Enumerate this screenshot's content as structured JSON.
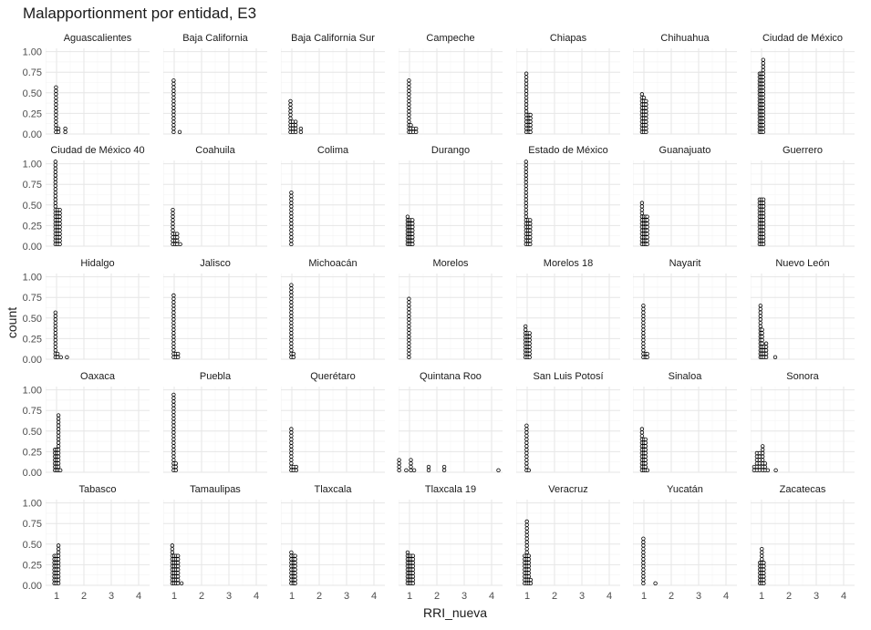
{
  "chart_data": {
    "type": "dotplot",
    "title": "Malapportionment por entidad, E3",
    "xlabel": "RRI_nueva",
    "ylabel": "count",
    "xlim": [
      0.6,
      4.4
    ],
    "ylim": [
      0,
      1.04
    ],
    "x_ticks": [
      1,
      2,
      3,
      4
    ],
    "y_ticks": [
      0,
      0.25,
      0.5,
      0.75,
      1.0
    ],
    "y_tick_labels": [
      "0.00",
      "0.25",
      "0.50",
      "0.75",
      "1.00"
    ],
    "grid": true,
    "dot_step": 0.0417,
    "panels": [
      {
        "name": "Aguascalientes",
        "stacks": [
          [
            0.98,
            14
          ],
          [
            1.07,
            2
          ],
          [
            1.32,
            2
          ]
        ]
      },
      {
        "name": "Baja California",
        "stacks": [
          [
            0.98,
            16
          ],
          [
            1.2,
            1
          ]
        ]
      },
      {
        "name": "Baja California Sur",
        "stacks": [
          [
            0.95,
            10
          ],
          [
            1.04,
            4
          ],
          [
            1.14,
            4
          ],
          [
            1.33,
            2
          ]
        ]
      },
      {
        "name": "Campeche",
        "stacks": [
          [
            0.98,
            16
          ],
          [
            1.05,
            3
          ],
          [
            1.14,
            2
          ],
          [
            1.24,
            2
          ]
        ]
      },
      {
        "name": "Chiapas",
        "stacks": [
          [
            0.97,
            18
          ],
          [
            1.06,
            6
          ],
          [
            1.12,
            6
          ]
        ]
      },
      {
        "name": "Chihuahua",
        "stacks": [
          [
            0.93,
            12
          ],
          [
            1.0,
            11
          ],
          [
            1.08,
            10
          ]
        ]
      },
      {
        "name": "Ciudad de México",
        "stacks": [
          [
            0.93,
            18
          ],
          [
            0.99,
            18
          ],
          [
            1.06,
            22
          ]
        ]
      },
      {
        "name": "Ciudad de México 40",
        "stacks": [
          [
            0.96,
            25
          ],
          [
            1.04,
            11
          ],
          [
            1.12,
            11
          ]
        ]
      },
      {
        "name": "Coahuila",
        "stacks": [
          [
            0.95,
            11
          ],
          [
            1.04,
            4
          ],
          [
            1.11,
            4
          ],
          [
            1.22,
            1
          ]
        ]
      },
      {
        "name": "Colima",
        "stacks": [
          [
            0.98,
            16
          ]
        ]
      },
      {
        "name": "Durango",
        "stacks": [
          [
            0.93,
            9
          ],
          [
            0.99,
            8
          ],
          [
            1.05,
            8
          ],
          [
            1.11,
            8
          ]
        ]
      },
      {
        "name": "Estado de México",
        "stacks": [
          [
            0.96,
            25
          ],
          [
            1.04,
            8
          ],
          [
            1.11,
            8
          ]
        ]
      },
      {
        "name": "Guanajuato",
        "stacks": [
          [
            0.93,
            13
          ],
          [
            1.0,
            9
          ],
          [
            1.06,
            9
          ],
          [
            1.12,
            9
          ]
        ]
      },
      {
        "name": "Guerrero",
        "stacks": [
          [
            0.93,
            14
          ],
          [
            1.0,
            14
          ],
          [
            1.07,
            14
          ]
        ]
      },
      {
        "name": "Hidalgo",
        "stacks": [
          [
            0.96,
            14
          ],
          [
            1.04,
            2
          ],
          [
            1.16,
            1
          ],
          [
            1.38,
            1
          ]
        ]
      },
      {
        "name": "Jalisco",
        "stacks": [
          [
            0.98,
            19
          ],
          [
            1.06,
            2
          ],
          [
            1.14,
            2
          ]
        ]
      },
      {
        "name": "Michoacán",
        "stacks": [
          [
            0.98,
            22
          ],
          [
            1.06,
            2
          ]
        ]
      },
      {
        "name": "Morelos",
        "stacks": [
          [
            0.98,
            18
          ]
        ]
      },
      {
        "name": "Morelos 18",
        "stacks": [
          [
            0.94,
            10
          ],
          [
            1.02,
            8
          ],
          [
            1.09,
            8
          ]
        ]
      },
      {
        "name": "Nayarit",
        "stacks": [
          [
            0.98,
            16
          ],
          [
            1.06,
            2
          ],
          [
            1.12,
            2
          ]
        ]
      },
      {
        "name": "Nuevo León",
        "stacks": [
          [
            0.96,
            16
          ],
          [
            1.02,
            9
          ],
          [
            1.09,
            4
          ],
          [
            1.17,
            5
          ],
          [
            1.5,
            1
          ]
        ]
      },
      {
        "name": "Oaxaca",
        "stacks": [
          [
            0.94,
            7
          ],
          [
            1.01,
            7
          ],
          [
            1.07,
            17
          ],
          [
            1.14,
            1
          ]
        ]
      },
      {
        "name": "Puebla",
        "stacks": [
          [
            0.98,
            23
          ],
          [
            1.06,
            3
          ]
        ]
      },
      {
        "name": "Querétaro",
        "stacks": [
          [
            0.98,
            13
          ],
          [
            1.06,
            2
          ],
          [
            1.16,
            2
          ]
        ]
      },
      {
        "name": "Quintana Roo",
        "stacks": [
          [
            0.62,
            4
          ],
          [
            0.88,
            1
          ],
          [
            1.05,
            4
          ],
          [
            1.17,
            1
          ],
          [
            1.7,
            2
          ],
          [
            2.27,
            2
          ],
          [
            4.25,
            1
          ]
        ]
      },
      {
        "name": "San Luis Potosí",
        "stacks": [
          [
            0.98,
            14
          ],
          [
            1.06,
            1
          ]
        ]
      },
      {
        "name": "Sinaloa",
        "stacks": [
          [
            0.93,
            13
          ],
          [
            1.0,
            10
          ],
          [
            1.06,
            10
          ],
          [
            1.13,
            1
          ]
        ]
      },
      {
        "name": "Sonora",
        "stacks": [
          [
            0.73,
            2
          ],
          [
            0.83,
            6
          ],
          [
            0.93,
            6
          ],
          [
            1.04,
            8
          ],
          [
            1.13,
            3
          ],
          [
            1.23,
            1
          ],
          [
            1.52,
            1
          ]
        ]
      },
      {
        "name": "Tabasco",
        "stacks": [
          [
            0.92,
            9
          ],
          [
            0.99,
            9
          ],
          [
            1.07,
            12
          ]
        ]
      },
      {
        "name": "Tamaulipas",
        "stacks": [
          [
            0.93,
            12
          ],
          [
            1.0,
            9
          ],
          [
            1.07,
            9
          ],
          [
            1.14,
            9
          ],
          [
            1.27,
            1
          ]
        ]
      },
      {
        "name": "Tlaxcala",
        "stacks": [
          [
            0.98,
            10
          ],
          [
            1.06,
            9
          ],
          [
            1.12,
            9
          ]
        ]
      },
      {
        "name": "Tlaxcala 19",
        "stacks": [
          [
            0.93,
            10
          ],
          [
            1.0,
            9
          ],
          [
            1.06,
            9
          ],
          [
            1.13,
            9
          ]
        ]
      },
      {
        "name": "Veracruz",
        "stacks": [
          [
            0.91,
            9
          ],
          [
            0.99,
            19
          ],
          [
            1.06,
            9
          ],
          [
            1.13,
            2
          ]
        ]
      },
      {
        "name": "Yucatán",
        "stacks": [
          [
            0.98,
            14
          ],
          [
            1.42,
            1
          ]
        ]
      },
      {
        "name": "Zacatecas",
        "stacks": [
          [
            0.94,
            7
          ],
          [
            1.01,
            11
          ],
          [
            1.08,
            7
          ]
        ]
      }
    ]
  }
}
